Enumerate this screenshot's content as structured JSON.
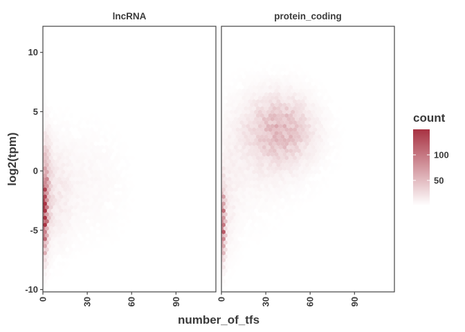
{
  "chart_data": {
    "type": "heatmap",
    "subtype": "hexbin",
    "xlabel": "number_of_tfs",
    "ylabel": "log2(tpm)",
    "x_ticks": [
      0,
      30,
      60,
      90
    ],
    "y_ticks": [
      -10,
      -5,
      0,
      5,
      10
    ],
    "xlim": [
      0,
      117
    ],
    "ylim": [
      -10.2,
      12.2
    ],
    "legend": {
      "title": "count",
      "ticks": [
        50,
        100
      ],
      "range": [
        1,
        150
      ],
      "low_color": "#ffffff",
      "high_color": "#a83242",
      "placement": "right"
    },
    "panels": [
      {
        "label": "lncRNA",
        "clusters": [
          {
            "x": 1,
            "y": -3.5,
            "sx": 1.2,
            "sy": 2.1,
            "peak": 150
          },
          {
            "x": 2,
            "y": -1.5,
            "sx": 2.5,
            "sy": 3.0,
            "peak": 40
          },
          {
            "x": 8,
            "y": -2,
            "sx": 8,
            "sy": 3,
            "peak": 14
          },
          {
            "x": 30,
            "y": -1,
            "sx": 18,
            "sy": 3.3,
            "peak": 6
          }
        ]
      },
      {
        "label": "protein_coding",
        "clusters": [
          {
            "x": 1,
            "y": -4.5,
            "sx": 1.1,
            "sy": 2.0,
            "peak": 95
          },
          {
            "x": 4,
            "y": -3,
            "sx": 5,
            "sy": 3,
            "peak": 10
          },
          {
            "x": 40,
            "y": 3.5,
            "sx": 14,
            "sy": 1.8,
            "peak": 42
          },
          {
            "x": 35,
            "y": 2.5,
            "sx": 22,
            "sy": 3.0,
            "peak": 10
          },
          {
            "x": 15,
            "y": 0,
            "sx": 15,
            "sy": 4,
            "peak": 4
          }
        ]
      }
    ]
  }
}
